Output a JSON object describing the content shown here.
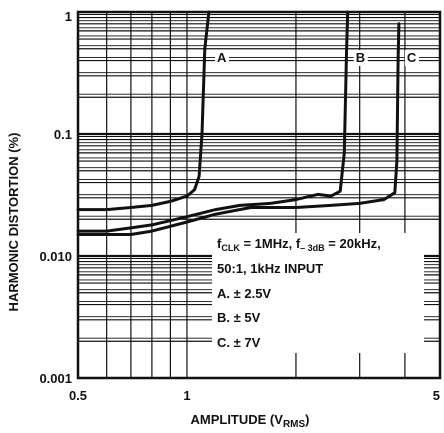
{
  "chart_data": {
    "type": "line",
    "title": "",
    "xlabel": "AMPLITUDE (V",
    "xlabel_sub": "RMS",
    "xlabel_close": ")",
    "ylabel": "HARMONIC DISTORTION (%)",
    "x_scale": "log",
    "y_scale": "log",
    "xlim": [
      0.5,
      5
    ],
    "ylim": [
      0.001,
      1
    ],
    "x_ticks": [
      {
        "value": 0.5,
        "label": "0.5"
      },
      {
        "value": 1,
        "label": "1"
      },
      {
        "value": 5,
        "label": "5"
      }
    ],
    "y_ticks": [
      {
        "value": 1,
        "label": "1"
      },
      {
        "value": 0.1,
        "label": "0.1"
      },
      {
        "value": 0.01,
        "label": "0.010"
      },
      {
        "value": 0.001,
        "label": "0.001"
      }
    ],
    "grid": true,
    "annotation": {
      "line1_a": "f",
      "line1_a_sub": "CLK",
      "line1_b": " = 1MHz, f",
      "line1_b_sub": "– 3dB",
      "line1_c": " = 20kHz,",
      "line2": "50:1, 1kHz INPUT",
      "items": [
        "A. ± 2.5V",
        "B. ± 5V",
        "C. ± 7V"
      ]
    },
    "series": [
      {
        "name": "A",
        "points": [
          [
            0.5,
            0.024
          ],
          [
            0.6,
            0.024
          ],
          [
            0.7,
            0.025
          ],
          [
            0.8,
            0.026
          ],
          [
            0.9,
            0.028
          ],
          [
            1.0,
            0.031
          ],
          [
            1.05,
            0.035
          ],
          [
            1.08,
            0.045
          ],
          [
            1.1,
            0.1
          ],
          [
            1.12,
            0.5
          ],
          [
            1.15,
            1.0
          ]
        ]
      },
      {
        "name": "B",
        "points": [
          [
            0.5,
            0.016
          ],
          [
            0.6,
            0.016
          ],
          [
            0.7,
            0.017
          ],
          [
            0.8,
            0.018
          ],
          [
            1.0,
            0.021
          ],
          [
            1.2,
            0.024
          ],
          [
            1.4,
            0.026
          ],
          [
            1.7,
            0.027
          ],
          [
            2.0,
            0.029
          ],
          [
            2.3,
            0.032
          ],
          [
            2.5,
            0.031
          ],
          [
            2.65,
            0.034
          ],
          [
            2.72,
            0.07
          ],
          [
            2.76,
            0.5
          ],
          [
            2.78,
            1.0
          ]
        ]
      },
      {
        "name": "C",
        "points": [
          [
            0.5,
            0.015
          ],
          [
            0.6,
            0.015
          ],
          [
            0.7,
            0.015
          ],
          [
            0.8,
            0.016
          ],
          [
            1.0,
            0.019
          ],
          [
            1.2,
            0.022
          ],
          [
            1.5,
            0.025
          ],
          [
            2.0,
            0.025
          ],
          [
            2.5,
            0.026
          ],
          [
            3.0,
            0.027
          ],
          [
            3.5,
            0.029
          ],
          [
            3.75,
            0.033
          ],
          [
            3.8,
            0.06
          ],
          [
            3.83,
            0.4
          ],
          [
            3.85,
            0.8
          ]
        ]
      }
    ]
  }
}
